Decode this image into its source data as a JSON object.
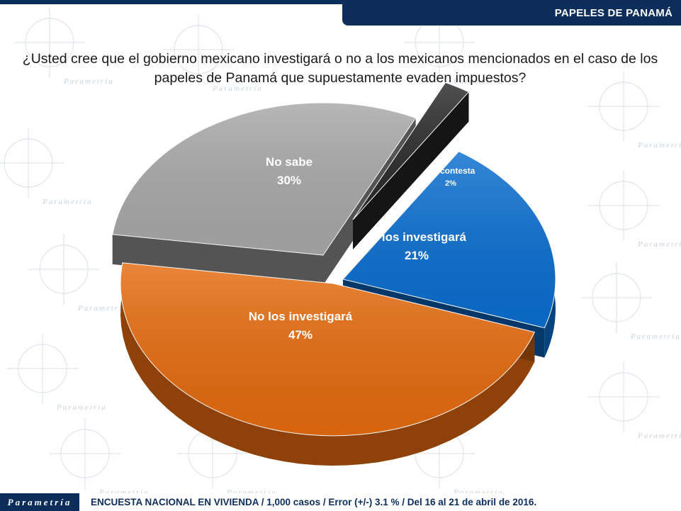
{
  "header": {
    "title": "PAPELES DE PANAMÁ"
  },
  "question": "¿Usted cree que el gobierno mexicano investigará o no a los mexicanos mencionados en el caso de los papeles de Panamá que supuestamente evaden impuestos?",
  "watermark": {
    "word": "Parametría"
  },
  "chart_data": {
    "type": "pie",
    "title": "",
    "slices": [
      {
        "label": "Sí los investigará",
        "value": 21,
        "display": "21%",
        "color": "#0a6ecf"
      },
      {
        "label": "No los investigará",
        "value": 47,
        "display": "47%",
        "color": "#e56b0f"
      },
      {
        "label": "No sabe",
        "value": 30,
        "display": "30%",
        "color": "#a8a8a8"
      },
      {
        "label": "No contesta",
        "value": 2,
        "display": "2%",
        "color": "#2a2a2a"
      }
    ],
    "legend": "none"
  },
  "footer": {
    "brand": "Parametría",
    "note": "ENCUESTA NACIONAL EN VIVIENDA / 1,000 casos / Error (+/-) 3.1 % / Del 16 al 21 de abril de 2016."
  }
}
